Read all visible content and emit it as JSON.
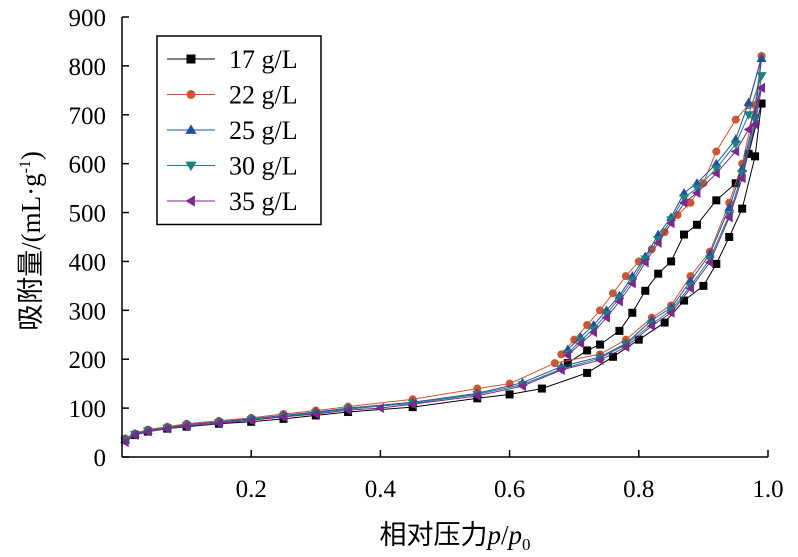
{
  "chart_data": {
    "type": "line",
    "title": "",
    "xlabel_prefix": "相对压力",
    "xlabel_p": "p",
    "xlabel_slash": "/",
    "xlabel_p0": "p",
    "xlabel_sub": "0",
    "ylabel_main": "吸附量/(mL·g",
    "ylabel_sup": "-1",
    "ylabel_close": ")",
    "xlim": [
      0,
      1.0
    ],
    "ylim": [
      0,
      900
    ],
    "xticks": [
      0.2,
      0.4,
      0.6,
      0.8,
      1.0
    ],
    "xtick_labels": [
      "0.2",
      "0.4",
      "0.6",
      "0.8",
      "1.0"
    ],
    "yticks": [
      0,
      100,
      200,
      300,
      400,
      500,
      600,
      700,
      800,
      900
    ],
    "ytick_labels": [
      "0",
      "100",
      "200",
      "300",
      "400",
      "500",
      "600",
      "700",
      "800",
      "900"
    ],
    "grid": false,
    "legend_position": "top-left",
    "series": [
      {
        "name": "17 g/L",
        "color": "#000000",
        "marker": "square",
        "adsorption": [
          [
            0.005,
            35
          ],
          [
            0.02,
            45
          ],
          [
            0.04,
            52
          ],
          [
            0.07,
            58
          ],
          [
            0.1,
            62
          ],
          [
            0.15,
            68
          ],
          [
            0.2,
            72
          ],
          [
            0.25,
            78
          ],
          [
            0.3,
            85
          ],
          [
            0.35,
            92
          ],
          [
            0.45,
            102
          ],
          [
            0.55,
            120
          ],
          [
            0.6,
            128
          ],
          [
            0.65,
            140
          ],
          [
            0.72,
            172
          ],
          [
            0.76,
            205
          ],
          [
            0.8,
            240
          ],
          [
            0.84,
            275
          ],
          [
            0.87,
            320
          ],
          [
            0.9,
            350
          ],
          [
            0.92,
            395
          ],
          [
            0.94,
            450
          ],
          [
            0.96,
            508
          ],
          [
            0.98,
            615
          ],
          [
            0.99,
            723
          ]
        ],
        "desorption": [
          [
            0.99,
            723
          ],
          [
            0.97,
            620
          ],
          [
            0.95,
            560
          ],
          [
            0.92,
            525
          ],
          [
            0.89,
            475
          ],
          [
            0.87,
            455
          ],
          [
            0.85,
            400
          ],
          [
            0.83,
            375
          ],
          [
            0.81,
            340
          ],
          [
            0.79,
            295
          ],
          [
            0.77,
            258
          ],
          [
            0.74,
            230
          ],
          [
            0.72,
            218
          ],
          [
            0.69,
            192
          ]
        ]
      },
      {
        "name": "22 g/L",
        "color": "#cc5533",
        "marker": "circle",
        "adsorption": [
          [
            0.005,
            38
          ],
          [
            0.02,
            48
          ],
          [
            0.04,
            56
          ],
          [
            0.07,
            62
          ],
          [
            0.1,
            68
          ],
          [
            0.15,
            74
          ],
          [
            0.2,
            80
          ],
          [
            0.25,
            88
          ],
          [
            0.3,
            95
          ],
          [
            0.35,
            103
          ],
          [
            0.45,
            118
          ],
          [
            0.55,
            140
          ],
          [
            0.6,
            150
          ],
          [
            0.67,
            192
          ],
          [
            0.74,
            210
          ],
          [
            0.78,
            240
          ],
          [
            0.82,
            285
          ],
          [
            0.85,
            310
          ],
          [
            0.88,
            370
          ],
          [
            0.91,
            420
          ],
          [
            0.94,
            520
          ],
          [
            0.96,
            600
          ],
          [
            0.98,
            720
          ],
          [
            0.99,
            820
          ]
        ],
        "desorption": [
          [
            0.99,
            820
          ],
          [
            0.97,
            720
          ],
          [
            0.95,
            690
          ],
          [
            0.92,
            625
          ],
          [
            0.9,
            560
          ],
          [
            0.88,
            520
          ],
          [
            0.86,
            495
          ],
          [
            0.84,
            460
          ],
          [
            0.82,
            425
          ],
          [
            0.8,
            400
          ],
          [
            0.78,
            370
          ],
          [
            0.76,
            335
          ],
          [
            0.74,
            300
          ],
          [
            0.72,
            270
          ],
          [
            0.7,
            240
          ],
          [
            0.68,
            210
          ]
        ]
      },
      {
        "name": "25 g/L",
        "color": "#1f4fa0",
        "marker": "triangle-up",
        "adsorption": [
          [
            0.005,
            36
          ],
          [
            0.02,
            47
          ],
          [
            0.04,
            54
          ],
          [
            0.07,
            60
          ],
          [
            0.1,
            66
          ],
          [
            0.15,
            72
          ],
          [
            0.2,
            78
          ],
          [
            0.25,
            85
          ],
          [
            0.3,
            92
          ],
          [
            0.35,
            100
          ],
          [
            0.45,
            112
          ],
          [
            0.55,
            130
          ],
          [
            0.62,
            152
          ],
          [
            0.68,
            185
          ],
          [
            0.74,
            205
          ],
          [
            0.78,
            232
          ],
          [
            0.82,
            280
          ],
          [
            0.85,
            305
          ],
          [
            0.88,
            360
          ],
          [
            0.91,
            415
          ],
          [
            0.94,
            510
          ],
          [
            0.96,
            590
          ],
          [
            0.98,
            700
          ],
          [
            0.99,
            815
          ]
        ],
        "desorption": [
          [
            0.99,
            815
          ],
          [
            0.97,
            725
          ],
          [
            0.95,
            650
          ],
          [
            0.92,
            600
          ],
          [
            0.89,
            560
          ],
          [
            0.87,
            540
          ],
          [
            0.85,
            490
          ],
          [
            0.83,
            455
          ],
          [
            0.81,
            410
          ],
          [
            0.79,
            370
          ],
          [
            0.77,
            330
          ],
          [
            0.75,
            300
          ],
          [
            0.73,
            270
          ],
          [
            0.71,
            245
          ],
          [
            0.69,
            220
          ]
        ]
      },
      {
        "name": "30 g/L",
        "color": "#1a8080",
        "marker": "triangle-down",
        "adsorption": [
          [
            0.005,
            34
          ],
          [
            0.02,
            46
          ],
          [
            0.04,
            53
          ],
          [
            0.07,
            59
          ],
          [
            0.1,
            64
          ],
          [
            0.15,
            70
          ],
          [
            0.2,
            76
          ],
          [
            0.25,
            83
          ],
          [
            0.3,
            90
          ],
          [
            0.35,
            98
          ],
          [
            0.45,
            110
          ],
          [
            0.55,
            128
          ],
          [
            0.62,
            148
          ],
          [
            0.68,
            180
          ],
          [
            0.74,
            202
          ],
          [
            0.78,
            230
          ],
          [
            0.82,
            272
          ],
          [
            0.85,
            300
          ],
          [
            0.88,
            350
          ],
          [
            0.91,
            405
          ],
          [
            0.94,
            495
          ],
          [
            0.96,
            580
          ],
          [
            0.98,
            690
          ],
          [
            0.99,
            780
          ]
        ],
        "desorption": [
          [
            0.99,
            780
          ],
          [
            0.97,
            700
          ],
          [
            0.95,
            640
          ],
          [
            0.92,
            590
          ],
          [
            0.89,
            550
          ],
          [
            0.87,
            530
          ],
          [
            0.85,
            485
          ],
          [
            0.83,
            445
          ],
          [
            0.81,
            405
          ],
          [
            0.79,
            362
          ],
          [
            0.77,
            325
          ],
          [
            0.75,
            292
          ],
          [
            0.73,
            262
          ],
          [
            0.71,
            238
          ],
          [
            0.69,
            212
          ]
        ]
      },
      {
        "name": "35 g/L",
        "color": "#7a2a8a",
        "marker": "triangle-left",
        "adsorption": [
          [
            0.005,
            30
          ],
          [
            0.02,
            45
          ],
          [
            0.04,
            52
          ],
          [
            0.07,
            58
          ],
          [
            0.1,
            63
          ],
          [
            0.15,
            69
          ],
          [
            0.2,
            75
          ],
          [
            0.25,
            82
          ],
          [
            0.3,
            88
          ],
          [
            0.35,
            96
          ],
          [
            0.4,
            100
          ],
          [
            0.45,
            108
          ],
          [
            0.55,
            125
          ],
          [
            0.62,
            145
          ],
          [
            0.68,
            178
          ],
          [
            0.74,
            198
          ],
          [
            0.78,
            225
          ],
          [
            0.82,
            268
          ],
          [
            0.85,
            295
          ],
          [
            0.88,
            345
          ],
          [
            0.91,
            398
          ],
          [
            0.94,
            490
          ],
          [
            0.96,
            570
          ],
          [
            0.98,
            680
          ],
          [
            0.99,
            755
          ]
        ],
        "desorption": [
          [
            0.99,
            755
          ],
          [
            0.97,
            670
          ],
          [
            0.95,
            625
          ],
          [
            0.92,
            580
          ],
          [
            0.89,
            540
          ],
          [
            0.87,
            520
          ],
          [
            0.85,
            478
          ],
          [
            0.83,
            438
          ],
          [
            0.81,
            398
          ],
          [
            0.79,
            355
          ],
          [
            0.77,
            318
          ],
          [
            0.75,
            285
          ],
          [
            0.73,
            255
          ],
          [
            0.71,
            232
          ],
          [
            0.69,
            208
          ]
        ]
      }
    ]
  }
}
